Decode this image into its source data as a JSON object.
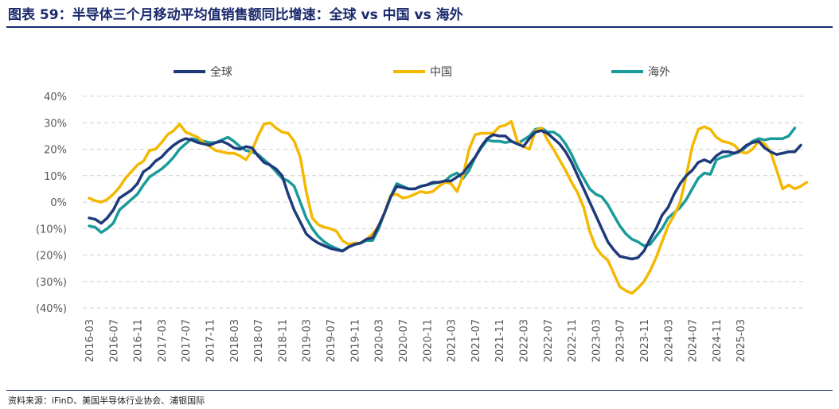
{
  "title": "图表 59：半导体三个月移动平均值销售额同比增速：全球 vs 中国 vs 海外",
  "source": "资料来源：iFinD、美国半导体行业协会、浦银国际",
  "chart_data": {
    "type": "line",
    "title": "",
    "xlabel": "",
    "ylabel": "",
    "ylim": [
      -40,
      40
    ],
    "yticks": [
      40,
      30,
      20,
      10,
      0,
      -10,
      -20,
      -30,
      -40
    ],
    "ytick_labels": [
      "40%",
      "30%",
      "20%",
      "10%",
      "0%",
      "(10%)",
      "(20%)",
      "(30%)",
      "(40%)"
    ],
    "xtick_labels": [
      "2016-03",
      "2016-07",
      "2016-11",
      "2017-03",
      "2017-07",
      "2017-11",
      "2018-03",
      "2018-07",
      "2018-11",
      "2019-03",
      "2019-07",
      "2019-11",
      "2020-03",
      "2020-07",
      "2020-11",
      "2021-03",
      "2021-07",
      "2021-11",
      "2022-03",
      "2022-07",
      "2022-11",
      "2023-03",
      "2023-07",
      "2023-11",
      "2024-03",
      "2024-07",
      "2024-11",
      "2025-03"
    ],
    "grid": true,
    "legend_position": "top",
    "start_month": "2016-03",
    "series": [
      {
        "name": "全球",
        "color": "#1f3a7a",
        "values": [
          -6,
          -6.5,
          -8,
          -6,
          -3,
          1.5,
          3,
          4.5,
          7,
          11.5,
          13,
          15.5,
          17,
          19.5,
          21.5,
          23,
          24,
          23.5,
          22.5,
          22,
          21.5,
          22.5,
          23,
          22,
          20.5,
          20,
          21,
          20.5,
          17.5,
          15,
          14,
          12.5,
          10,
          3,
          -3,
          -7.5,
          -12,
          -14,
          -15.5,
          -16.5,
          -17.5,
          -18,
          -18.5,
          -17,
          -16,
          -15.5,
          -14,
          -13.5,
          -9,
          -4,
          2,
          6,
          5.5,
          5,
          5,
          6,
          6.5,
          7.5,
          7.5,
          8,
          8,
          9.5,
          11,
          14,
          17,
          21,
          24,
          25.5,
          25,
          25,
          23,
          22,
          21,
          24,
          26.5,
          27,
          26,
          24,
          22,
          19,
          15,
          10,
          5,
          0,
          -5,
          -10,
          -15,
          -18,
          -20.5,
          -21,
          -21.5,
          -21,
          -18.5,
          -14,
          -10,
          -5,
          -2,
          3,
          7,
          10,
          12,
          15,
          16,
          15,
          17.5,
          19,
          19,
          18.5,
          19.5,
          21.5,
          22.5,
          23,
          20.5,
          19,
          18,
          18.5,
          19,
          19,
          21.5
        ]
      },
      {
        "name": "中国",
        "color": "#f5b800",
        "values": [
          1.5,
          0.5,
          0,
          1,
          3,
          5.5,
          9,
          11.5,
          14,
          15.5,
          19.5,
          20,
          22.5,
          25.5,
          27,
          29.5,
          26.5,
          25.5,
          24.5,
          22.5,
          21,
          19.5,
          19,
          18.5,
          18.5,
          17.5,
          16,
          19.5,
          25,
          29.5,
          30,
          28,
          26.5,
          26,
          23,
          17,
          4,
          -6,
          -8.5,
          -9.5,
          -10,
          -11,
          -14.5,
          -16,
          -15.5,
          -15.5,
          -14,
          -12,
          -9,
          -4,
          2.5,
          3,
          1.5,
          2,
          3,
          4,
          3.5,
          4,
          6,
          7.5,
          7,
          4,
          10,
          20,
          25.5,
          26,
          26,
          26,
          28.5,
          29,
          30.5,
          23,
          21,
          20,
          27,
          28,
          23.5,
          20,
          16,
          12,
          7.5,
          3.5,
          -2,
          -11,
          -17,
          -20,
          -22,
          -27,
          -32,
          -33.5,
          -34.5,
          -32.5,
          -30,
          -26,
          -21,
          -15,
          -9,
          -5,
          0,
          10,
          21,
          27.5,
          28.5,
          27.5,
          24.5,
          23,
          22.5,
          21.5,
          19,
          18.5,
          20,
          23,
          22,
          19,
          12,
          5,
          6.5,
          5,
          6,
          7.5
        ]
      },
      {
        "name": "海外",
        "color": "#1b9a9a",
        "values": [
          -9,
          -9.5,
          -11.5,
          -10,
          -8,
          -3,
          -1,
          1,
          3,
          6.5,
          9.5,
          11,
          12.5,
          14.5,
          17,
          20,
          22,
          24,
          23.5,
          23,
          22.5,
          22.5,
          23.5,
          24.5,
          23,
          21,
          19.5,
          19,
          18,
          16,
          14,
          11.5,
          9,
          8,
          6,
          0,
          -6,
          -10,
          -13,
          -15,
          -16.5,
          -17.5,
          -18.5,
          -17,
          -16,
          -15.5,
          -14.5,
          -14.5,
          -10,
          -4,
          2,
          7,
          6,
          5,
          5,
          6,
          6.5,
          7,
          7.5,
          8,
          10,
          11,
          9,
          12,
          17,
          20.5,
          23.5,
          23,
          23,
          22.5,
          23,
          22,
          23.5,
          25,
          27.5,
          28,
          26.5,
          26.5,
          25,
          22,
          18,
          13,
          9,
          5,
          3,
          2,
          -1,
          -5,
          -9,
          -12,
          -14,
          -15,
          -16.5,
          -16,
          -13,
          -10,
          -6,
          -4,
          -2,
          1,
          5,
          9,
          11,
          10.5,
          16,
          17,
          17.5,
          18.5,
          19,
          21,
          23,
          24,
          23.5,
          24,
          24,
          24,
          25,
          28
        ]
      }
    ]
  }
}
